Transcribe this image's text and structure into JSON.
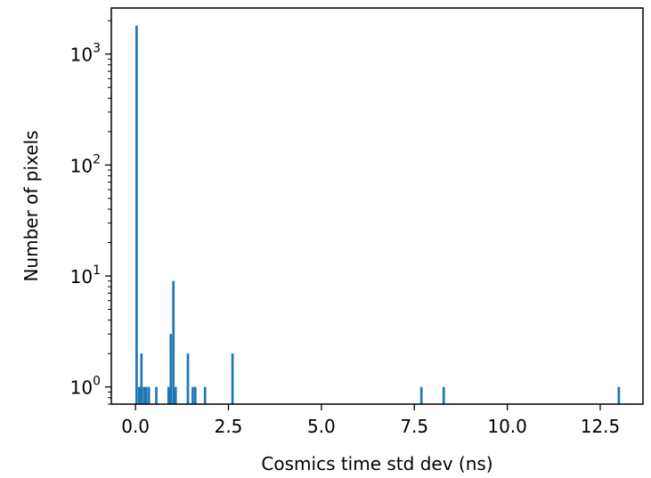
{
  "chart_data": {
    "type": "bar",
    "title": "",
    "xlabel": "Cosmics time std dev (ns)",
    "ylabel": "Number of pixels",
    "xlim": [
      -0.65,
      13.65
    ],
    "ylim": [
      0.7,
      2600
    ],
    "y_scale": "log",
    "grid": false,
    "bar_color": "#1f77b4",
    "bar_width": 0.065,
    "x_ticks": [
      {
        "value": 0.0,
        "label": "0.0"
      },
      {
        "value": 2.5,
        "label": "2.5"
      },
      {
        "value": 5.0,
        "label": "5.0"
      },
      {
        "value": 7.5,
        "label": "7.5"
      },
      {
        "value": 10.0,
        "label": "10.0"
      },
      {
        "value": 12.5,
        "label": "12.5"
      }
    ],
    "y_ticks": [
      {
        "value": 1,
        "base": "10",
        "exp": "0"
      },
      {
        "value": 10,
        "base": "10",
        "exp": "1"
      },
      {
        "value": 100,
        "base": "10",
        "exp": "2"
      },
      {
        "value": 1000,
        "base": "10",
        "exp": "3"
      }
    ],
    "bins": [
      {
        "x": 0.03,
        "count": 1800
      },
      {
        "x": 0.1,
        "count": 1
      },
      {
        "x": 0.16,
        "count": 2
      },
      {
        "x": 0.23,
        "count": 1
      },
      {
        "x": 0.29,
        "count": 1
      },
      {
        "x": 0.36,
        "count": 1
      },
      {
        "x": 0.56,
        "count": 1
      },
      {
        "x": 0.89,
        "count": 1
      },
      {
        "x": 0.95,
        "count": 3
      },
      {
        "x": 1.02,
        "count": 9
      },
      {
        "x": 1.08,
        "count": 1
      },
      {
        "x": 1.41,
        "count": 2
      },
      {
        "x": 1.54,
        "count": 1
      },
      {
        "x": 1.61,
        "count": 1
      },
      {
        "x": 1.87,
        "count": 1
      },
      {
        "x": 2.61,
        "count": 2
      },
      {
        "x": 7.69,
        "count": 1
      },
      {
        "x": 8.29,
        "count": 1
      },
      {
        "x": 13.0,
        "count": 1
      }
    ]
  }
}
